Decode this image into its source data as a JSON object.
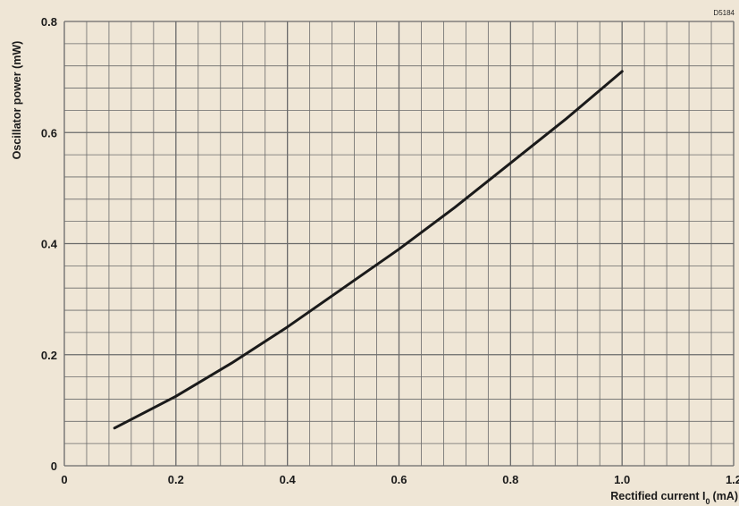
{
  "chart_data": {
    "type": "line",
    "reference": "D5184",
    "xlabel": "Rectified current I",
    "xlabel_sub": "0",
    "xlabel_unit": "(mA)",
    "ylabel": "Oscillator power (mW)",
    "xlim": [
      0,
      1.2
    ],
    "ylim": [
      0,
      0.8
    ],
    "x_ticks": [
      "0",
      "0.2",
      "0.4",
      "0.6",
      "0.8",
      "1.0",
      "1.2"
    ],
    "y_ticks": [
      "0",
      "0.2",
      "0.4",
      "0.6",
      "0.8"
    ],
    "grid": true,
    "series": [
      {
        "x": [
          0.09,
          0.2,
          0.3,
          0.4,
          0.5,
          0.6,
          0.7,
          0.8,
          0.9,
          1.0
        ],
        "y": [
          0.068,
          0.125,
          0.185,
          0.25,
          0.32,
          0.39,
          0.465,
          0.545,
          0.625,
          0.71
        ]
      }
    ],
    "colors": {
      "background": "#efe6d6",
      "grid": "#6a6a6a",
      "curve": "#1a1a1a"
    }
  }
}
